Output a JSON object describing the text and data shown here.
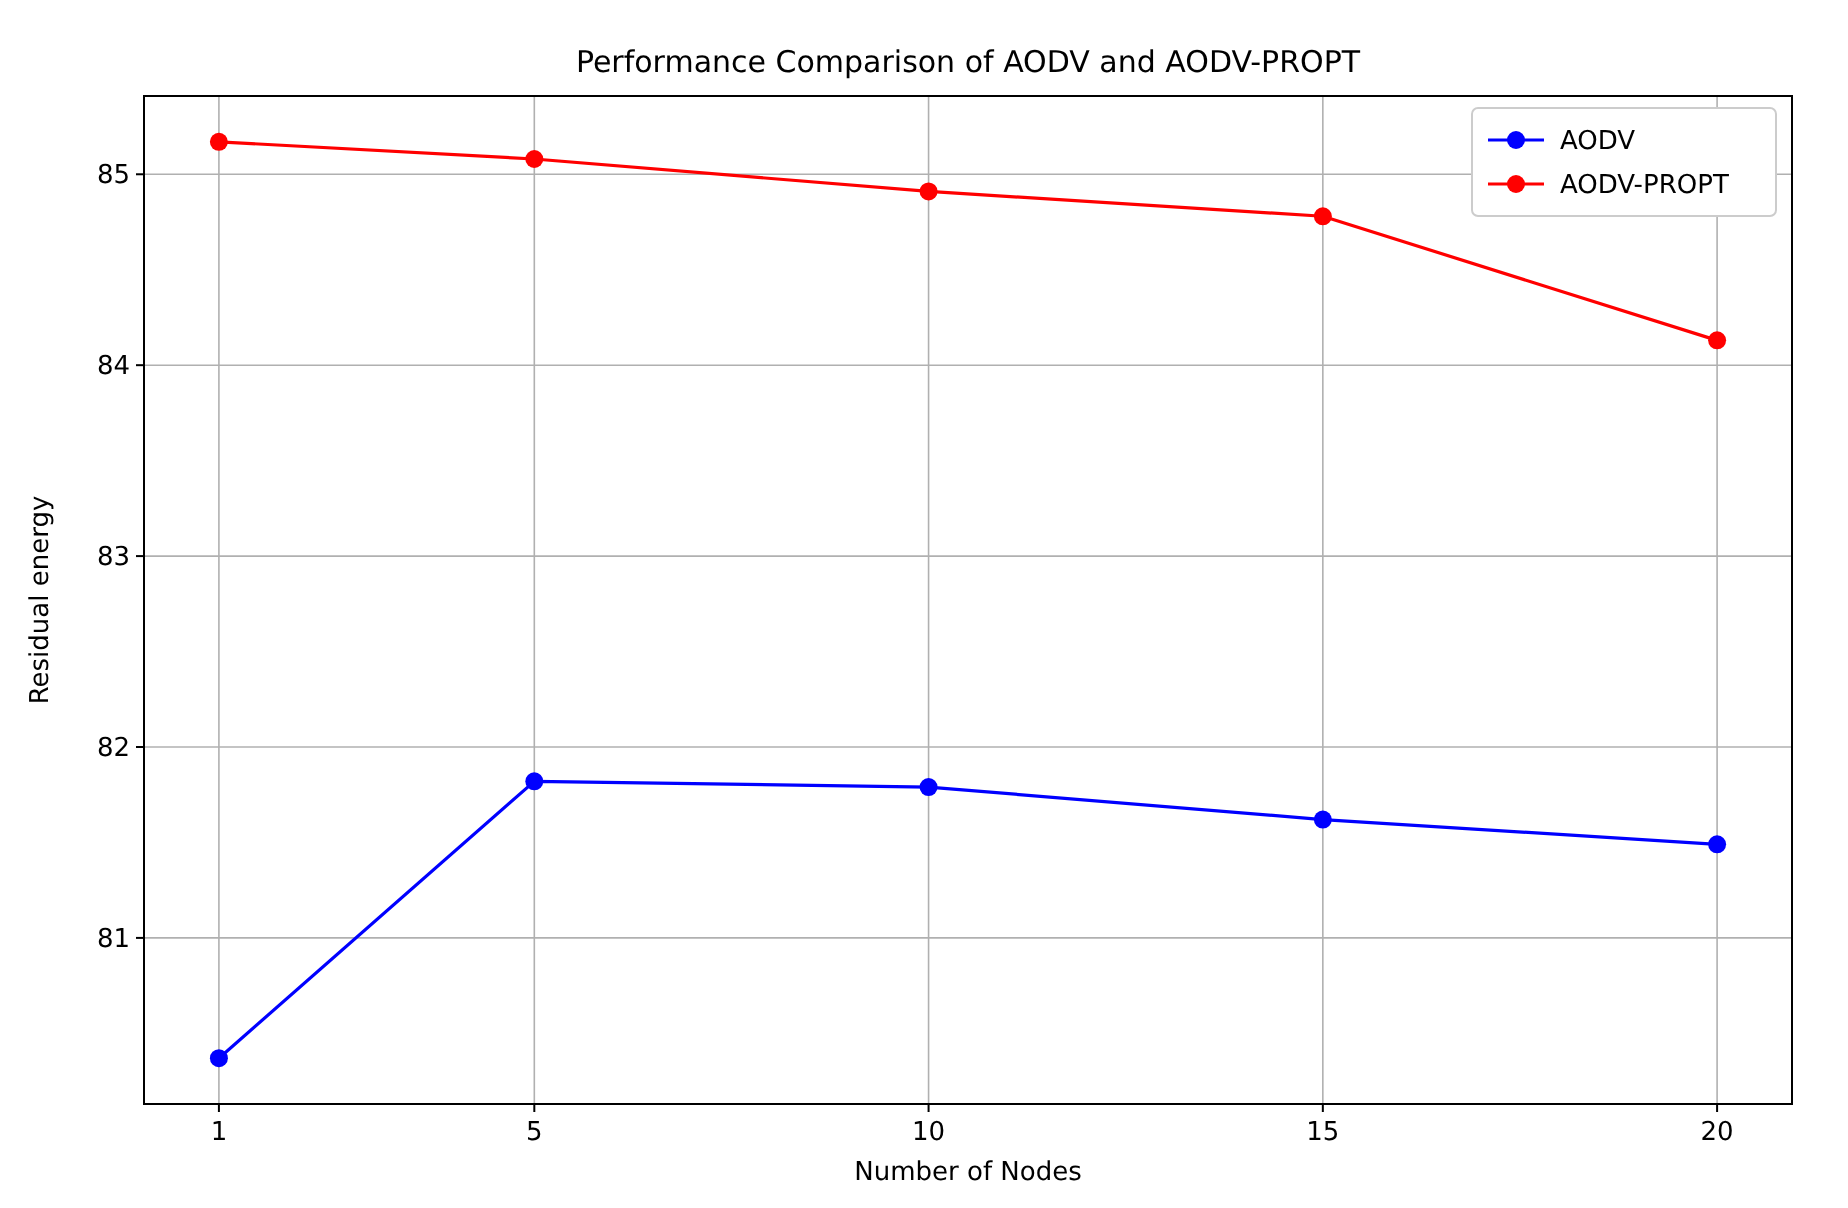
{
  "chart_data": {
    "type": "line",
    "title": "Performance Comparison of AODV and AODV-PROPT",
    "xlabel": "Number of Nodes",
    "ylabel": "Residual energy",
    "x": [
      1,
      5,
      10,
      15,
      20
    ],
    "series": [
      {
        "name": "AODV",
        "color": "#0000ff",
        "values": [
          80.37,
          81.82,
          81.79,
          81.62,
          81.49
        ]
      },
      {
        "name": "AODV-PROPT",
        "color": "#ff0000",
        "values": [
          85.17,
          85.08,
          84.91,
          84.78,
          84.13
        ]
      }
    ],
    "xlim": [
      0.05,
      20.95
    ],
    "xticks": [
      1,
      5,
      10,
      15,
      20
    ],
    "ylim": [
      80.13,
      85.41
    ],
    "yticks": [
      81,
      82,
      83,
      84,
      85
    ],
    "grid": true,
    "legend": "top right",
    "marker": "circle",
    "line_style": "solid"
  }
}
